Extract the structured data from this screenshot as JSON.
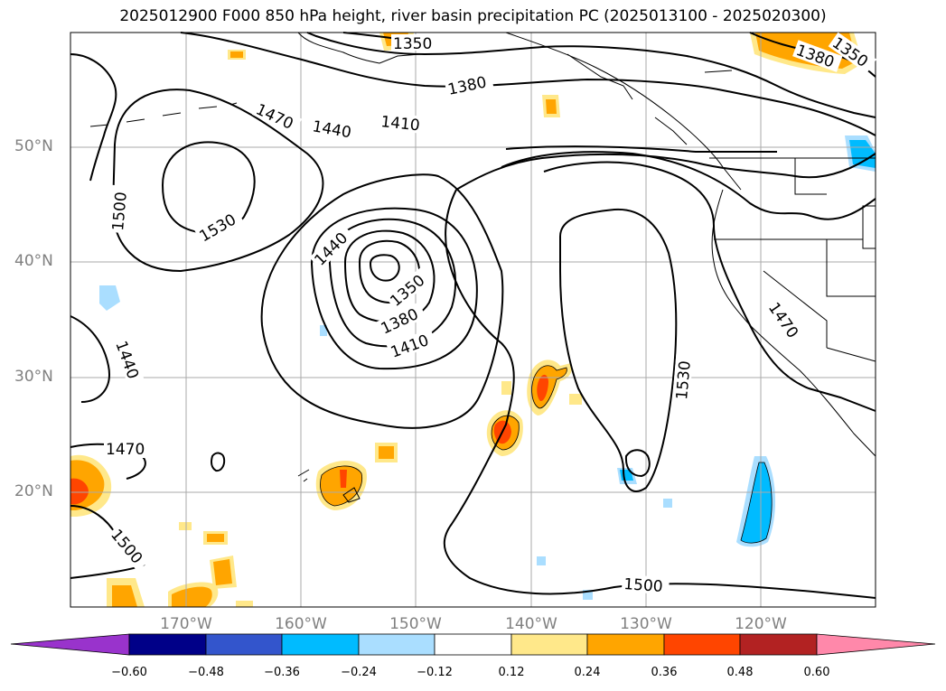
{
  "title": "2025012900 F000 850 hPa height, river basin precipitation PC (2025013100 - 2025020300)",
  "lat_labels": [
    "50°N",
    "40°N",
    "30°N",
    "20°N"
  ],
  "lon_labels": [
    "170°W",
    "160°W",
    "150°W",
    "140°W",
    "130°W",
    "120°W"
  ],
  "contour_labels": {
    "c1350_top": "1350",
    "c1380_top": "1380",
    "c1410_top": "1410",
    "c1440_top": "1440",
    "c1470_top": "1470",
    "c1500_left": "1500",
    "c1530_left": "1530",
    "c1440_low": "1440",
    "c1350_low": "1350",
    "c1380_low": "1380",
    "c1410_low": "1410",
    "c1440_west": "1440",
    "c1470_west": "1470",
    "c1500_sw": "1500",
    "c1530_east": "1530",
    "c1500_bottom": "1500",
    "c1470_coast": "1470",
    "c1380_ne": "1380",
    "c1350_ne": "1350"
  },
  "colorbar": {
    "levels": [
      "−0.60",
      "−0.48",
      "−0.36",
      "−0.24",
      "−0.12",
      "0.12",
      "0.24",
      "0.36",
      "0.48",
      "0.60"
    ],
    "colors": [
      "#9933cc",
      "#000088",
      "#3355cc",
      "#00bbff",
      "#aadeff",
      "#ffffff",
      "#ffe88a",
      "#ffa500",
      "#ff4500",
      "#b22222",
      "#ff88aa"
    ]
  },
  "colors": {
    "pos_light": "#ffe88a",
    "pos_mid": "#ffa500",
    "pos_high": "#ff4500",
    "neg_light": "#aadeff",
    "neg_mid": "#00bbff",
    "grid": "#aaaaaa"
  }
}
